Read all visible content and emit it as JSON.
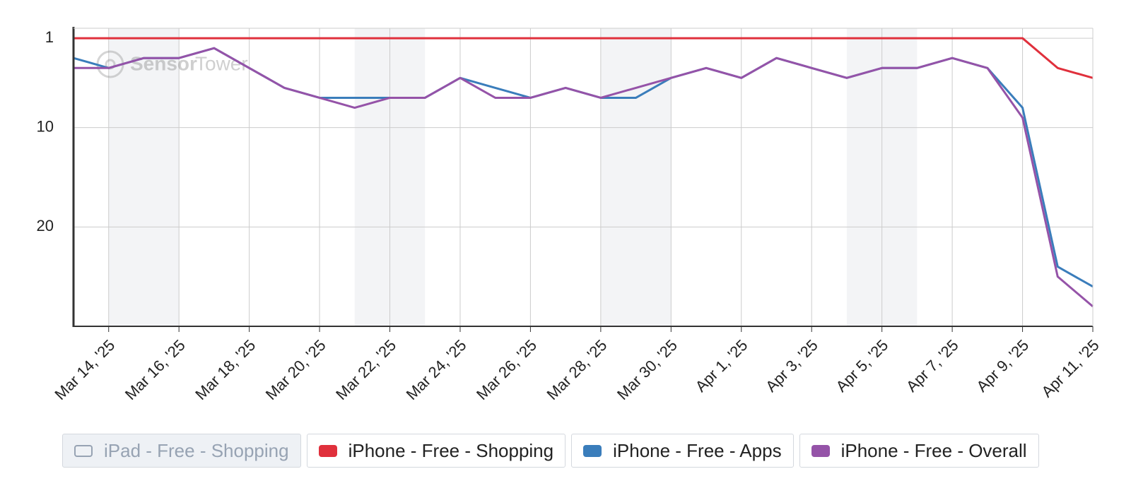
{
  "chart_data": {
    "type": "line",
    "watermark": [
      "Sensor",
      "Tower"
    ],
    "categories": [
      null,
      "Mar 14, '25",
      null,
      "Mar 16, '25",
      null,
      "Mar 18, '25",
      null,
      "Mar 20, '25",
      null,
      "Mar 22, '25",
      null,
      "Mar 24, '25",
      null,
      "Mar 26, '25",
      null,
      "Mar 28, '25",
      null,
      "Mar 30, '25",
      null,
      "Apr 1, '25",
      null,
      "Apr 3, '25",
      null,
      "Apr 5, '25",
      null,
      "Apr 7, '25",
      null,
      "Apr 9, '25",
      null,
      "Apr 11, '25"
    ],
    "series": [
      {
        "name": "iPad - Free - Shopping",
        "visible": false,
        "values": [
          null,
          null,
          null,
          null,
          null,
          null,
          null,
          null,
          null,
          null,
          null,
          null,
          null,
          null,
          null,
          null,
          null,
          null,
          null,
          null,
          null,
          null,
          null,
          null,
          null,
          null,
          null,
          null,
          null,
          null
        ]
      },
      {
        "name": "iPhone - Free - Shopping",
        "color": "#e0303c",
        "visible": true,
        "values": [
          1,
          1,
          1,
          1,
          1,
          1,
          1,
          1,
          1,
          1,
          1,
          1,
          1,
          1,
          1,
          1,
          1,
          1,
          1,
          1,
          1,
          1,
          1,
          1,
          1,
          1,
          1,
          1,
          4,
          5
        ]
      },
      {
        "name": "iPhone - Free - Apps",
        "color": "#3a7dbb",
        "visible": true,
        "values": [
          3,
          4,
          3,
          3,
          2,
          4,
          6,
          7,
          7,
          7,
          7,
          5,
          6,
          7,
          6,
          7,
          7,
          5,
          4,
          5,
          3,
          4,
          5,
          4,
          4,
          3,
          4,
          8,
          24,
          26
        ]
      },
      {
        "name": "iPhone - Free - Overall",
        "color": "#9553a8",
        "visible": true,
        "values": [
          4,
          4,
          3,
          3,
          2,
          4,
          6,
          7,
          8,
          7,
          7,
          5,
          7,
          7,
          6,
          7,
          6,
          5,
          4,
          5,
          3,
          4,
          5,
          4,
          4,
          3,
          4,
          9,
          25,
          28
        ]
      }
    ],
    "ylim": [
      30,
      0
    ],
    "yticks": [
      1,
      10,
      20
    ],
    "grid": true
  }
}
